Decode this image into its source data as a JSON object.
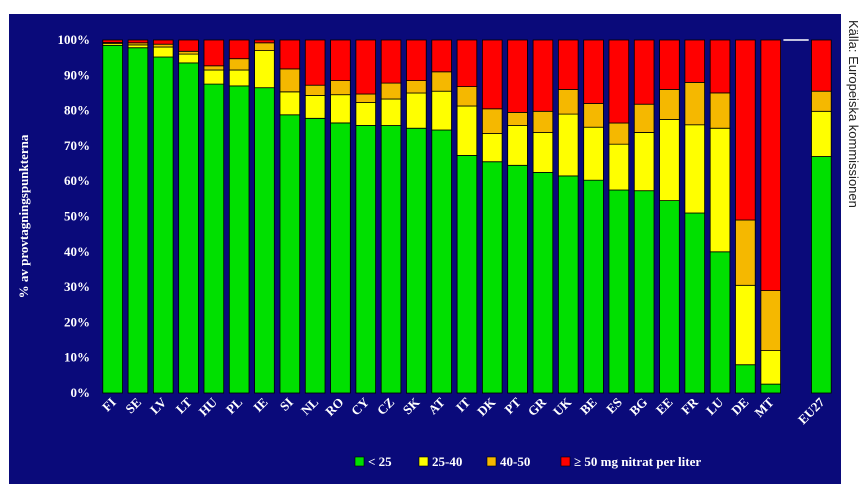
{
  "source_note": "Källa: Europeiska kommissionen",
  "colors": {
    "background": "#0a0a7a",
    "lt25": "#00e000",
    "25_40": "#ffff00",
    "40_50": "#f5b800",
    "gte50": "#ff0000",
    "edge": "#000000"
  },
  "chart_data": {
    "type": "bar",
    "stacked": true,
    "ylabel": "% av provtagningspunkterna",
    "xlabel": "",
    "ylim": [
      0,
      100
    ],
    "yticks": [
      "0%",
      "10%",
      "20%",
      "30%",
      "40%",
      "50%",
      "60%",
      "70%",
      "80%",
      "90%",
      "100%"
    ],
    "categories": [
      "FI",
      "SE",
      "LV",
      "LT",
      "HU",
      "PL",
      "IE",
      "SI",
      "NL",
      "RO",
      "CY",
      "CZ",
      "SK",
      "AT",
      "IT",
      "DK",
      "PT",
      "GR",
      "UK",
      "BE",
      "ES",
      "BG",
      "EE",
      "FR",
      "LU",
      "DE",
      "MT",
      "",
      "EU27"
    ],
    "series": [
      {
        "name": "< 25",
        "color": "#00e000",
        "values": [
          98.5,
          97.8,
          95.2,
          93.5,
          87.5,
          87,
          86.5,
          78.8,
          77.8,
          76.5,
          75.8,
          75.8,
          75,
          74.5,
          67.3,
          65.5,
          64.5,
          62.5,
          61.5,
          60.3,
          57.5,
          57.3,
          54.5,
          51,
          40,
          8,
          2.5,
          0,
          67
        ]
      },
      {
        "name": "25-40",
        "color": "#ffff00",
        "values": [
          0.5,
          0.8,
          2.8,
          2.5,
          4,
          4.5,
          10.5,
          6.5,
          6.5,
          8,
          6.5,
          7.5,
          10,
          11,
          14,
          8,
          11.3,
          11.3,
          17.5,
          15,
          13,
          16.5,
          23,
          25,
          35,
          22.5,
          9.5,
          0,
          12.8
        ]
      },
      {
        "name": "40-50",
        "color": "#f5b800",
        "values": [
          0.3,
          0.6,
          0.8,
          0.8,
          1.2,
          3.2,
          2.2,
          6.5,
          2.9,
          4,
          2.4,
          4.5,
          3.5,
          5.5,
          5.5,
          7,
          3.7,
          6,
          7,
          6.7,
          6,
          8,
          8.5,
          12,
          10,
          18.5,
          17,
          0,
          5.7
        ]
      },
      {
        "name": "≥ 50 mg nitrat per liter",
        "color": "#ff0000",
        "values": [
          0.7,
          0.8,
          1.2,
          3.2,
          7.3,
          5.3,
          0.8,
          8.2,
          12.8,
          11.5,
          15.3,
          12.2,
          11.5,
          9,
          13.2,
          19.5,
          20.5,
          20.2,
          14,
          18,
          23.5,
          18.2,
          14,
          12,
          15,
          51,
          71,
          0,
          14.5
        ]
      }
    ],
    "legend_position": "bottom",
    "grid": false
  }
}
